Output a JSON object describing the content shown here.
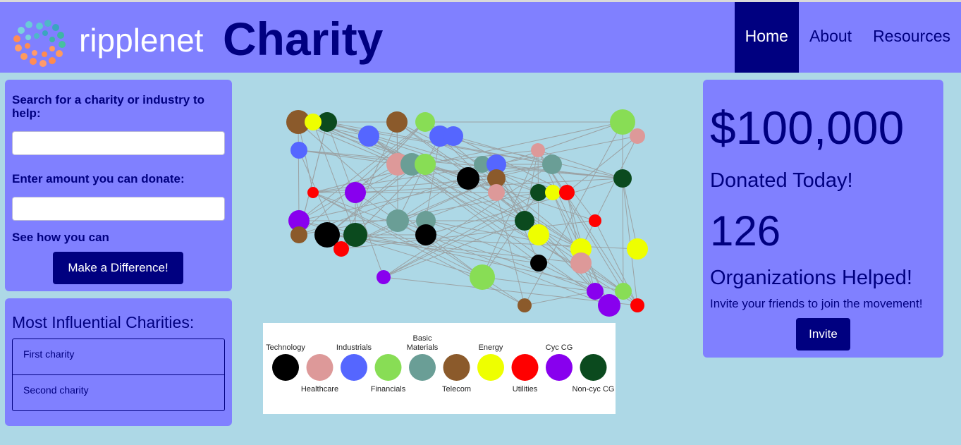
{
  "brand": {
    "name": "ripplenet",
    "title": "Charity"
  },
  "nav": {
    "home": "Home",
    "about": "About",
    "resources": "Resources"
  },
  "search_panel": {
    "search_label": "Search for a charity or industry to help:",
    "search_value": "",
    "amount_label": "Enter amount you can donate:",
    "amount_value": "",
    "see_how": "See how you can",
    "button": "Make a Difference!"
  },
  "charities": {
    "title": "Most Influential Charities:",
    "items": [
      "First charity",
      "Second charity"
    ]
  },
  "stats": {
    "amount": "$100,000",
    "donated_label": "Donated Today!",
    "count": "126",
    "helped_label": "Organizations Helped!",
    "invite_text": "Invite your friends to join the movement!",
    "invite_button": "Invite"
  },
  "colors": {
    "header_bg": "#8080ff",
    "accent": "#000080",
    "page_bg": "#add8e6",
    "technology": "#000000",
    "healthcare": "#dd9999",
    "industrials": "#5566ff",
    "financials": "#88dd55",
    "basic_materials": "#6a9e96",
    "telecom": "#8b5a2b",
    "energy": "#eeff00",
    "utilities": "#ff0000",
    "cyc_cg": "#8800ee",
    "non_cyc_cg": "#0b4a1e"
  },
  "legend": [
    {
      "label": "Technology",
      "color": "#000000"
    },
    {
      "label": "Healthcare",
      "color": "#dd9999"
    },
    {
      "label": "Industrials",
      "color": "#5566ff"
    },
    {
      "label": "Financials",
      "color": "#88dd55"
    },
    {
      "label": "Basic Materials",
      "color": "#6a9e96"
    },
    {
      "label": "Telecom",
      "color": "#8b5a2b"
    },
    {
      "label": "Energy",
      "color": "#eeff00"
    },
    {
      "label": "Utilities",
      "color": "#ff0000"
    },
    {
      "label": "Cyc CG",
      "color": "#8800ee"
    },
    {
      "label": "Non-cyc CG",
      "color": "#0b4a1e"
    }
  ]
}
